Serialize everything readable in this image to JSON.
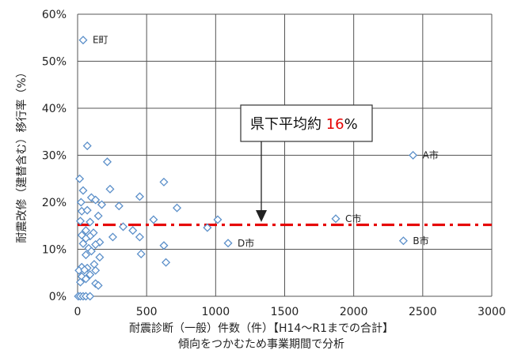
{
  "chart_data": {
    "type": "scatter",
    "title": "",
    "xlabel": "耐震診断（一般）件数（件）【H14～R1までの合計】",
    "xlabel_sub": "傾向をつかむため事業期間で分析",
    "ylabel": "耐震改修（建替含む）移行率（%）",
    "xlim": [
      0,
      3000
    ],
    "ylim": [
      0,
      60
    ],
    "x_ticks": [
      0,
      500,
      1000,
      1500,
      2000,
      2500,
      3000
    ],
    "x_tick_labels": [
      "0",
      "500",
      "1000",
      "1500",
      "2000",
      "2500",
      "3000"
    ],
    "y_ticks": [
      0,
      10,
      20,
      30,
      40,
      50,
      60
    ],
    "y_tick_labels": [
      "0%",
      "10%",
      "20%",
      "30%",
      "40%",
      "50%",
      "60%"
    ],
    "grid": true,
    "marker": "diamond",
    "marker_color": "#5b8fc9",
    "reference_line": {
      "y": 15.2,
      "color": "#e60000",
      "style": "dash-dot"
    },
    "callout": {
      "prefix": "県下平均約 ",
      "value": "16",
      "suffix": "%",
      "value_color": "#e60000"
    },
    "labeled_points": [
      {
        "x": 40,
        "y": 54.5,
        "label": "E町"
      },
      {
        "x": 2430,
        "y": 30,
        "label": "A市"
      },
      {
        "x": 1870,
        "y": 16.5,
        "label": "C市"
      },
      {
        "x": 1090,
        "y": 11.3,
        "label": "D市"
      },
      {
        "x": 2360,
        "y": 11.8,
        "label": "B市"
      }
    ],
    "points": [
      {
        "x": 40,
        "y": 54.5
      },
      {
        "x": 70,
        "y": 32
      },
      {
        "x": 215,
        "y": 28.6
      },
      {
        "x": 2430,
        "y": 30
      },
      {
        "x": 15,
        "y": 25
      },
      {
        "x": 625,
        "y": 24.3
      },
      {
        "x": 40,
        "y": 22.5
      },
      {
        "x": 235,
        "y": 22.8
      },
      {
        "x": 100,
        "y": 21
      },
      {
        "x": 450,
        "y": 21.2
      },
      {
        "x": 130,
        "y": 20.5
      },
      {
        "x": 25,
        "y": 20
      },
      {
        "x": 175,
        "y": 19.5
      },
      {
        "x": 300,
        "y": 19.2
      },
      {
        "x": 720,
        "y": 18.8
      },
      {
        "x": 30,
        "y": 18.1
      },
      {
        "x": 70,
        "y": 18.3
      },
      {
        "x": 150,
        "y": 17.1
      },
      {
        "x": 1870,
        "y": 16.5
      },
      {
        "x": 550,
        "y": 16.3
      },
      {
        "x": 1015,
        "y": 16.3
      },
      {
        "x": 20,
        "y": 16
      },
      {
        "x": 90,
        "y": 15.8
      },
      {
        "x": 330,
        "y": 14.8
      },
      {
        "x": 940,
        "y": 14.6
      },
      {
        "x": 60,
        "y": 14
      },
      {
        "x": 400,
        "y": 14
      },
      {
        "x": 115,
        "y": 13.5
      },
      {
        "x": 30,
        "y": 13
      },
      {
        "x": 90,
        "y": 12.8
      },
      {
        "x": 255,
        "y": 12.6
      },
      {
        "x": 450,
        "y": 12.6
      },
      {
        "x": 60,
        "y": 12.3
      },
      {
        "x": 160,
        "y": 11.5
      },
      {
        "x": 1090,
        "y": 11.3
      },
      {
        "x": 40,
        "y": 11.2
      },
      {
        "x": 130,
        "y": 11
      },
      {
        "x": 2360,
        "y": 11.8
      },
      {
        "x": 625,
        "y": 10.8
      },
      {
        "x": 80,
        "y": 10.2
      },
      {
        "x": 100,
        "y": 9.6
      },
      {
        "x": 460,
        "y": 9
      },
      {
        "x": 60,
        "y": 8.8
      },
      {
        "x": 160,
        "y": 8.3
      },
      {
        "x": 640,
        "y": 7.2
      },
      {
        "x": 120,
        "y": 6.8
      },
      {
        "x": 30,
        "y": 6.2
      },
      {
        "x": 70,
        "y": 6
      },
      {
        "x": 10,
        "y": 5.5
      },
      {
        "x": 50,
        "y": 5.6
      },
      {
        "x": 130,
        "y": 5.5
      },
      {
        "x": 90,
        "y": 4.6
      },
      {
        "x": 30,
        "y": 4.2
      },
      {
        "x": 60,
        "y": 3.7
      },
      {
        "x": 20,
        "y": 3
      },
      {
        "x": 130,
        "y": 2.7
      },
      {
        "x": 150,
        "y": 2.3
      },
      {
        "x": 5,
        "y": 0
      },
      {
        "x": 20,
        "y": 0
      },
      {
        "x": 40,
        "y": 0
      },
      {
        "x": 60,
        "y": 0
      },
      {
        "x": 90,
        "y": 0
      }
    ]
  }
}
